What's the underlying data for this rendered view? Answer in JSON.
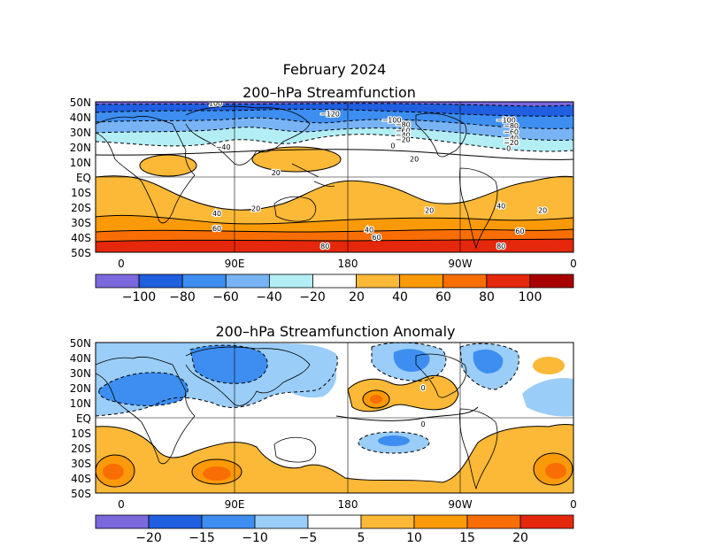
{
  "title": "February 2024",
  "map_top": {
    "subtitle": "200–hPa Streamfunction",
    "lat_labels": [
      "50N",
      "40N",
      "30N",
      "20N",
      "10N",
      "EQ",
      "10S",
      "20S",
      "30S",
      "40S",
      "50S"
    ],
    "lon_labels": [
      "0",
      "90E",
      "180",
      "90W",
      "0"
    ],
    "colorbar": {
      "colors": [
        "#7b68dd",
        "#1f5fe0",
        "#3d8ef0",
        "#78b4f5",
        "#b4eef5",
        "#ffffff",
        "#fbb937",
        "#fb9a08",
        "#f86e05",
        "#e5270b",
        "#a80000"
      ],
      "labels": [
        "−100",
        "−80",
        "−60",
        "−40",
        "−20",
        "20",
        "40",
        "60",
        "80",
        "100"
      ]
    },
    "contour_labels": [
      {
        "text": "−120",
        "lon": 166,
        "lat": 42
      },
      {
        "text": "−100",
        "lon": 215,
        "lat": 38
      },
      {
        "text": "−80",
        "lon": 224,
        "lat": 35
      },
      {
        "text": "−60",
        "lon": 224,
        "lat": 31
      },
      {
        "text": "−40",
        "lon": 224,
        "lat": 28
      },
      {
        "text": "−20",
        "lon": 224,
        "lat": 25
      },
      {
        "text": "0",
        "lon": 216,
        "lat": 21
      },
      {
        "text": "−100",
        "lon": 306,
        "lat": 38
      },
      {
        "text": "−80",
        "lon": 310,
        "lat": 34
      },
      {
        "text": "−60",
        "lon": 310,
        "lat": 30
      },
      {
        "text": "−40",
        "lon": 310,
        "lat": 26
      },
      {
        "text": "−20",
        "lon": 310,
        "lat": 23
      },
      {
        "text": "0",
        "lon": 308,
        "lat": 19
      },
      {
        "text": "−40",
        "lon": 81,
        "lat": 20
      },
      {
        "text": "100",
        "lon": 75,
        "lat": 49
      },
      {
        "text": "20",
        "lon": 233,
        "lat": 12
      },
      {
        "text": "20",
        "lon": 123,
        "lat": 3
      },
      {
        "text": "20",
        "lon": 107,
        "lat": -21
      },
      {
        "text": "20",
        "lon": 245,
        "lat": -22
      },
      {
        "text": "40",
        "lon": 302,
        "lat": -19
      },
      {
        "text": "20",
        "lon": 335,
        "lat": -22
      },
      {
        "text": "40",
        "lon": 76,
        "lat": -24
      },
      {
        "text": "60",
        "lon": 76,
        "lat": -34
      },
      {
        "text": "40",
        "lon": 197,
        "lat": -35
      },
      {
        "text": "60",
        "lon": 203,
        "lat": -40
      },
      {
        "text": "80",
        "lon": 162,
        "lat": -46
      },
      {
        "text": "60",
        "lon": 317,
        "lat": -36
      },
      {
        "text": "80",
        "lon": 302,
        "lat": -46
      }
    ]
  },
  "map_bottom": {
    "subtitle": "200–hPa Streamfunction Anomaly",
    "lat_labels": [
      "50N",
      "40N",
      "30N",
      "20N",
      "10N",
      "EQ",
      "10S",
      "20S",
      "30S",
      "40S",
      "50S"
    ],
    "lon_labels": [
      "0",
      "90E",
      "180",
      "90W",
      "0"
    ],
    "colorbar": {
      "colors": [
        "#7b68dd",
        "#1f5fe0",
        "#3d8ef0",
        "#9acdf7",
        "#ffffff",
        "#fbb937",
        "#fb9a08",
        "#f86e05",
        "#e5270b"
      ],
      "labels": [
        "−20",
        "−15",
        "−10",
        "−5",
        "5",
        "10",
        "15",
        "20"
      ]
    },
    "contour_labels": [
      {
        "text": "0",
        "lon": 240,
        "lat": 20
      },
      {
        "text": "0",
        "lon": 240,
        "lat": -4
      }
    ]
  }
}
